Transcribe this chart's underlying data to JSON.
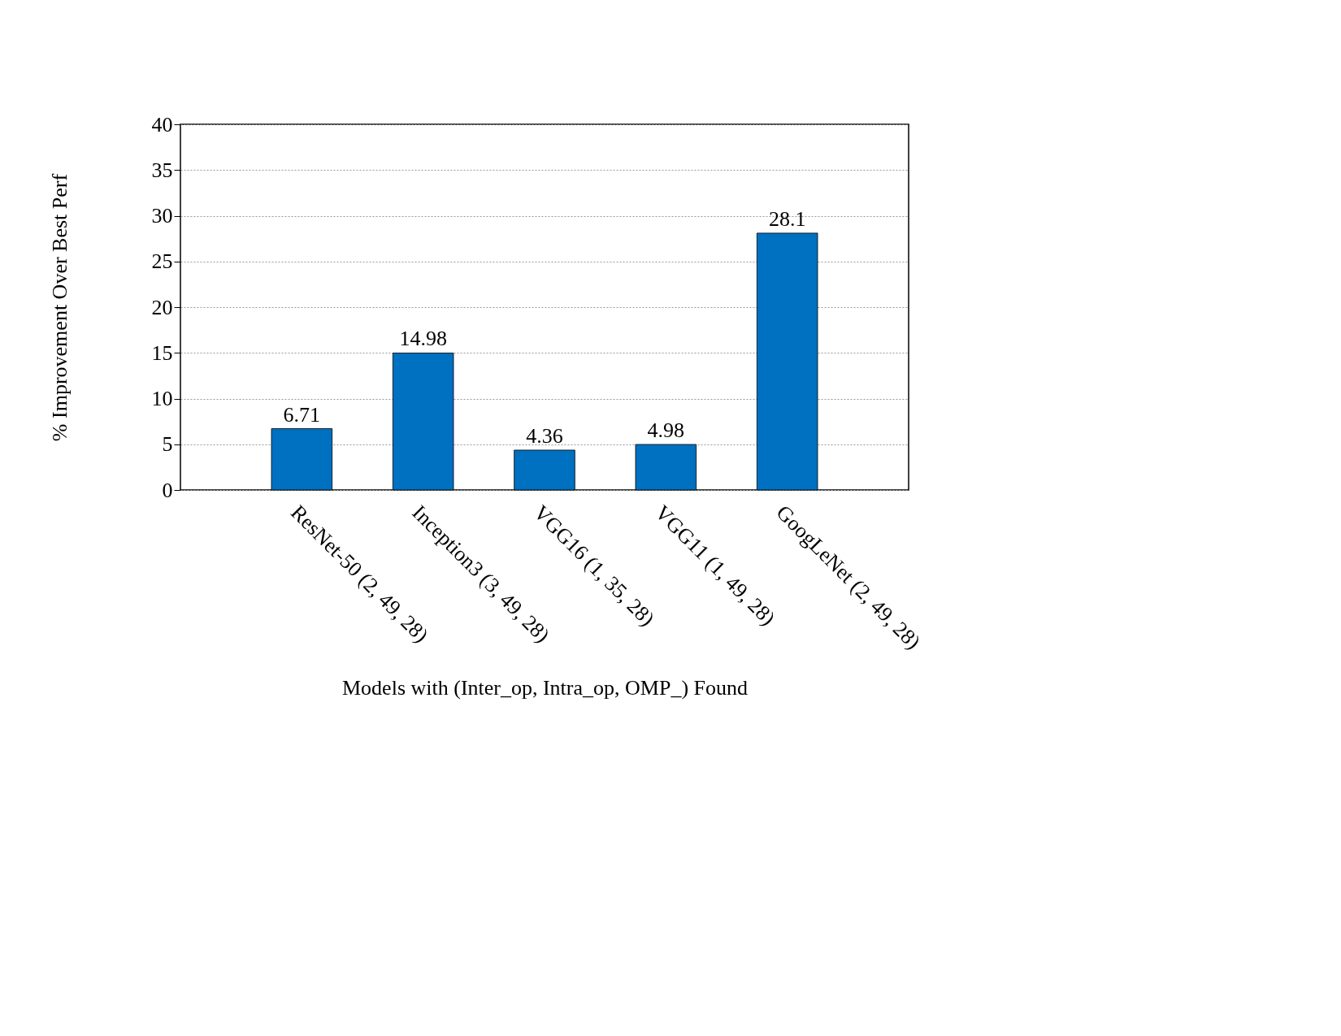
{
  "chart_data": {
    "type": "bar",
    "xlabel": "Models with (Inter_op, Intra_op, OMP_) Found",
    "ylabel": "% Improvement Over Best Perf",
    "categories": [
      "ResNet-50 (2, 49, 28)",
      "Inception3 (3, 49, 28)",
      "VGG16 (1, 35, 28)",
      "VGG11 (1, 49, 28)",
      "GoogLeNet (2, 49, 28)"
    ],
    "values": [
      6.71,
      14.98,
      4.36,
      4.98,
      28.1
    ],
    "color": "#0070c0",
    "data_labels": true,
    "ylim": [
      0,
      40
    ],
    "yticks": [
      0,
      5,
      10,
      15,
      20,
      25,
      30,
      35,
      40
    ],
    "grid": "y"
  }
}
